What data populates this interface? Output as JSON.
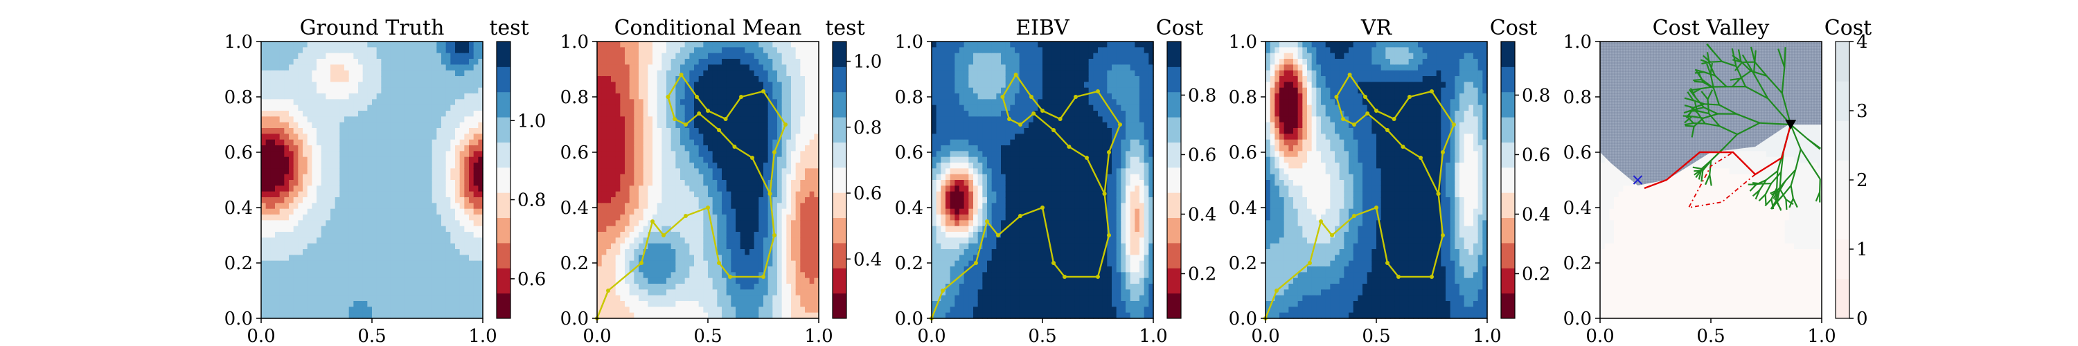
{
  "figure": {
    "panels": [
      {
        "id": "ground-truth",
        "title": "Ground Truth",
        "colorbar_label": "test",
        "colorbar_ticks": [
          0.6,
          0.8,
          1.0
        ],
        "colorbar_range": [
          0.5,
          1.2
        ],
        "colormap": [
          "#67001f",
          "#b2182b",
          "#d6604d",
          "#f4a582",
          "#fddbc7",
          "#f7f7f7",
          "#d1e5f0",
          "#92c5de",
          "#4393c3",
          "#2166ac",
          "#053061"
        ],
        "has_path": false
      },
      {
        "id": "conditional-mean",
        "title": "Conditional Mean",
        "colorbar_label": "test",
        "colorbar_ticks": [
          0.4,
          0.6,
          0.8,
          1.0
        ],
        "colorbar_range": [
          0.22,
          1.06
        ],
        "colormap": [
          "#67001f",
          "#b2182b",
          "#d6604d",
          "#f4a582",
          "#fddbc7",
          "#f7f7f7",
          "#d1e5f0",
          "#92c5de",
          "#4393c3",
          "#2166ac",
          "#053061"
        ],
        "has_path": true
      },
      {
        "id": "eibv",
        "title": "EIBV",
        "colorbar_label": "Cost",
        "colorbar_ticks": [
          0.2,
          0.4,
          0.6,
          0.8
        ],
        "colorbar_range": [
          0.05,
          0.98
        ],
        "colormap": [
          "#67001f",
          "#b2182b",
          "#d6604d",
          "#f4a582",
          "#fddbc7",
          "#f7f7f7",
          "#d1e5f0",
          "#92c5de",
          "#4393c3",
          "#2166ac",
          "#053061"
        ],
        "has_path": true
      },
      {
        "id": "vr",
        "title": "VR",
        "colorbar_label": "Cost",
        "colorbar_ticks": [
          0.2,
          0.4,
          0.6,
          0.8
        ],
        "colorbar_range": [
          0.05,
          0.98
        ],
        "colormap": [
          "#67001f",
          "#b2182b",
          "#d6604d",
          "#f4a582",
          "#fddbc7",
          "#f7f7f7",
          "#d1e5f0",
          "#92c5de",
          "#4393c3",
          "#2166ac",
          "#053061"
        ],
        "has_path": true
      },
      {
        "id": "cost-valley",
        "title": "Cost Valley",
        "colorbar_label": "Cost",
        "colorbar_ticks": [
          0,
          1,
          2,
          3,
          4
        ],
        "colorbar_range": [
          0,
          4
        ],
        "colormap": [
          "#fcebe8",
          "#fdf2f0",
          "#fdf8f6",
          "#f6f6f6",
          "#eef2f4",
          "#e3ebef",
          "#dbe4e9"
        ],
        "has_path": false
      }
    ],
    "axes": {
      "x_ticks": [
        0.0,
        0.5,
        1.0
      ],
      "y_ticks": [
        0.0,
        0.2,
        0.4,
        0.6,
        0.8,
        1.0
      ],
      "xlim": [
        0,
        1
      ],
      "ylim": [
        0,
        1
      ]
    }
  },
  "chart_data": [
    {
      "type": "heatmap",
      "title": "Ground Truth",
      "colorbar_label": "test",
      "x_range": [
        0,
        1
      ],
      "y_range": [
        0,
        1
      ],
      "features": [
        {
          "kind": "low",
          "x": 0.04,
          "y": 0.55,
          "value": 0.5
        },
        {
          "kind": "low",
          "x": 0.98,
          "y": 0.52,
          "value": 0.6
        },
        {
          "kind": "low",
          "x": 0.32,
          "y": 0.88,
          "value": 0.85
        },
        {
          "kind": "high",
          "x": 0.9,
          "y": 0.98,
          "value": 1.15
        },
        {
          "kind": "high",
          "x": 0.45,
          "y": 0.02,
          "value": 1.0
        }
      ]
    },
    {
      "type": "heatmap",
      "title": "Conditional Mean",
      "colorbar_label": "test",
      "x_range": [
        0,
        1
      ],
      "y_range": [
        0,
        1
      ],
      "path": [
        [
          0.0,
          0.0
        ],
        [
          0.05,
          0.1
        ],
        [
          0.2,
          0.2
        ],
        [
          0.25,
          0.35
        ],
        [
          0.3,
          0.3
        ],
        [
          0.4,
          0.37
        ],
        [
          0.5,
          0.4
        ],
        [
          0.55,
          0.2
        ],
        [
          0.6,
          0.15
        ],
        [
          0.75,
          0.15
        ],
        [
          0.8,
          0.3
        ],
        [
          0.78,
          0.45
        ],
        [
          0.8,
          0.6
        ],
        [
          0.85,
          0.7
        ],
        [
          0.75,
          0.82
        ],
        [
          0.65,
          0.8
        ],
        [
          0.58,
          0.72
        ],
        [
          0.5,
          0.75
        ],
        [
          0.45,
          0.8
        ],
        [
          0.38,
          0.88
        ],
        [
          0.32,
          0.8
        ],
        [
          0.35,
          0.72
        ],
        [
          0.4,
          0.7
        ],
        [
          0.46,
          0.74
        ],
        [
          0.55,
          0.68
        ],
        [
          0.62,
          0.62
        ],
        [
          0.7,
          0.58
        ],
        [
          0.78,
          0.45
        ]
      ]
    },
    {
      "type": "heatmap",
      "title": "EIBV",
      "colorbar_label": "Cost",
      "x_range": [
        0,
        1
      ],
      "y_range": [
        0,
        1
      ],
      "path": [
        [
          0.0,
          0.0
        ],
        [
          0.05,
          0.1
        ],
        [
          0.2,
          0.2
        ],
        [
          0.25,
          0.35
        ],
        [
          0.3,
          0.3
        ],
        [
          0.4,
          0.37
        ],
        [
          0.5,
          0.4
        ],
        [
          0.55,
          0.2
        ],
        [
          0.6,
          0.15
        ],
        [
          0.75,
          0.15
        ],
        [
          0.8,
          0.3
        ],
        [
          0.78,
          0.45
        ],
        [
          0.8,
          0.6
        ],
        [
          0.85,
          0.7
        ],
        [
          0.75,
          0.82
        ],
        [
          0.65,
          0.8
        ],
        [
          0.58,
          0.72
        ],
        [
          0.5,
          0.75
        ],
        [
          0.45,
          0.8
        ],
        [
          0.38,
          0.88
        ],
        [
          0.32,
          0.8
        ],
        [
          0.35,
          0.72
        ],
        [
          0.4,
          0.7
        ],
        [
          0.46,
          0.74
        ],
        [
          0.55,
          0.68
        ],
        [
          0.62,
          0.62
        ],
        [
          0.7,
          0.58
        ],
        [
          0.78,
          0.45
        ]
      ]
    },
    {
      "type": "heatmap",
      "title": "VR",
      "colorbar_label": "Cost",
      "x_range": [
        0,
        1
      ],
      "y_range": [
        0,
        1
      ],
      "path": [
        [
          0.0,
          0.0
        ],
        [
          0.05,
          0.1
        ],
        [
          0.2,
          0.2
        ],
        [
          0.25,
          0.35
        ],
        [
          0.3,
          0.3
        ],
        [
          0.4,
          0.37
        ],
        [
          0.5,
          0.4
        ],
        [
          0.55,
          0.2
        ],
        [
          0.6,
          0.15
        ],
        [
          0.75,
          0.15
        ],
        [
          0.8,
          0.3
        ],
        [
          0.78,
          0.45
        ],
        [
          0.8,
          0.6
        ],
        [
          0.85,
          0.7
        ],
        [
          0.75,
          0.82
        ],
        [
          0.65,
          0.8
        ],
        [
          0.58,
          0.72
        ],
        [
          0.5,
          0.75
        ],
        [
          0.45,
          0.8
        ],
        [
          0.38,
          0.88
        ],
        [
          0.32,
          0.8
        ],
        [
          0.35,
          0.72
        ],
        [
          0.4,
          0.7
        ],
        [
          0.46,
          0.74
        ],
        [
          0.55,
          0.68
        ],
        [
          0.62,
          0.62
        ],
        [
          0.7,
          0.58
        ],
        [
          0.78,
          0.45
        ]
      ]
    },
    {
      "type": "heatmap",
      "title": "Cost Valley",
      "colorbar_label": "Cost",
      "x_range": [
        0,
        1
      ],
      "y_range": [
        0,
        1
      ],
      "obstacle_boundary": [
        [
          0.0,
          1.0
        ],
        [
          1.0,
          1.0
        ],
        [
          1.0,
          0.7
        ],
        [
          0.85,
          0.7
        ],
        [
          0.7,
          0.62
        ],
        [
          0.5,
          0.6
        ],
        [
          0.3,
          0.5
        ],
        [
          0.17,
          0.48
        ],
        [
          0.05,
          0.56
        ],
        [
          0.0,
          0.6
        ]
      ],
      "current_location": {
        "x": 0.86,
        "y": 0.7
      },
      "target_location": {
        "x": 0.17,
        "y": 0.5
      },
      "planned_path": [
        [
          0.86,
          0.7
        ],
        [
          0.82,
          0.58
        ],
        [
          0.7,
          0.52
        ],
        [
          0.6,
          0.6
        ],
        [
          0.45,
          0.6
        ],
        [
          0.3,
          0.5
        ],
        [
          0.2,
          0.47
        ]
      ],
      "alt_path": [
        [
          0.7,
          0.52
        ],
        [
          0.55,
          0.42
        ],
        [
          0.4,
          0.4
        ],
        [
          0.5,
          0.55
        ],
        [
          0.6,
          0.6
        ]
      ]
    }
  ]
}
